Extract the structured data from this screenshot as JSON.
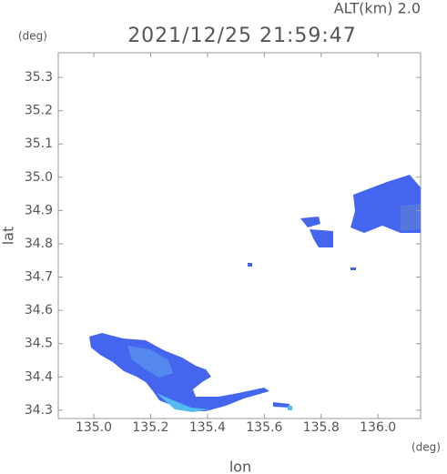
{
  "chart_data": {
    "type": "map",
    "title": "2021/12/25 21:59:47",
    "subtitle": "ALT(km) 2.0",
    "y_unit": "(deg)",
    "x_unit": "(deg)",
    "xlabel": "lon",
    "ylabel": "lat",
    "xlim": [
      134.875,
      136.15
    ],
    "ylim": [
      34.275,
      35.374
    ],
    "xticks": [
      {
        "value": 135.0,
        "label": "135.0"
      },
      135.2,
      135.4,
      135.6,
      135.8,
      {
        "value": 136.0,
        "label": "136.0"
      }
    ],
    "yticks": [
      34.3,
      34.4,
      34.5,
      34.6,
      34.7,
      34.8,
      34.9,
      {
        "value": 35.0,
        "label": "35.0"
      },
      35.1,
      35.2,
      35.3
    ]
  }
}
